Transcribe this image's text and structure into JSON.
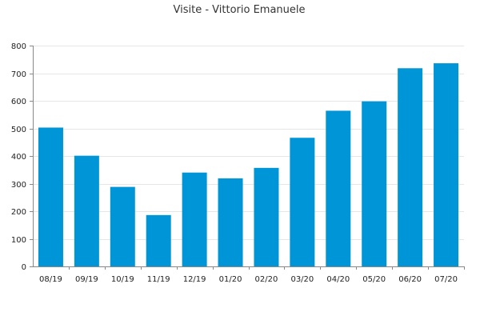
{
  "chart_data": {
    "type": "bar",
    "title": "Visite - Vittorio Emanuele",
    "xlabel": "",
    "ylabel": "",
    "categories": [
      "08/19",
      "09/19",
      "10/19",
      "11/19",
      "12/19",
      "01/20",
      "02/20",
      "03/20",
      "04/20",
      "05/20",
      "06/20",
      "07/20"
    ],
    "values": [
      503,
      401,
      288,
      186,
      340,
      319,
      357,
      466,
      564,
      598,
      718,
      736
    ],
    "ylim": [
      0,
      800
    ],
    "yticks": [
      0,
      100,
      200,
      300,
      400,
      500,
      600,
      700,
      800
    ],
    "grid": true,
    "legend": "none",
    "bar_color": "#0095d6"
  }
}
